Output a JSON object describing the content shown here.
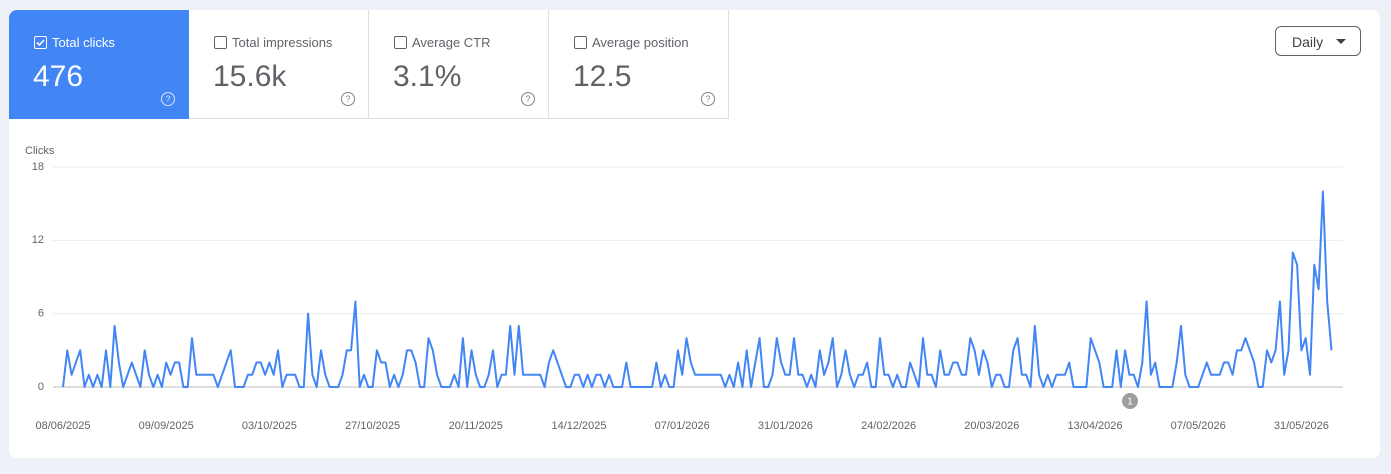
{
  "metrics": [
    {
      "label": "Total clicks",
      "value": "476"
    },
    {
      "label": "Total impressions",
      "value": "15.6k"
    },
    {
      "label": "Average CTR",
      "value": "3.1%"
    },
    {
      "label": "Average position",
      "value": "12.5"
    }
  ],
  "dropdown": "Daily",
  "chart_data": {
    "type": "line",
    "y_label": "Clicks",
    "color": "#4285f4",
    "grid": true,
    "ylim": [
      0,
      18
    ],
    "yticks": [
      0,
      6,
      12,
      18
    ],
    "annotation": "1",
    "categories": [
      "08/06/2025",
      null,
      null,
      null,
      null,
      null,
      null,
      null,
      null,
      null,
      null,
      null,
      null,
      null,
      null,
      null,
      null,
      null,
      null,
      null,
      null,
      null,
      null,
      null,
      "09/09/2025",
      null,
      null,
      null,
      null,
      null,
      null,
      null,
      null,
      null,
      null,
      null,
      null,
      null,
      null,
      null,
      null,
      null,
      null,
      null,
      null,
      null,
      null,
      null,
      "03/10/2025",
      null,
      null,
      null,
      null,
      null,
      null,
      null,
      null,
      null,
      null,
      null,
      null,
      null,
      null,
      null,
      null,
      null,
      null,
      null,
      null,
      null,
      null,
      null,
      "27/10/2025",
      null,
      null,
      null,
      null,
      null,
      null,
      null,
      null,
      null,
      null,
      null,
      null,
      null,
      null,
      null,
      null,
      null,
      null,
      null,
      null,
      null,
      null,
      null,
      "20/11/2025",
      null,
      null,
      null,
      null,
      null,
      null,
      null,
      null,
      null,
      null,
      null,
      null,
      null,
      null,
      null,
      null,
      null,
      null,
      null,
      null,
      null,
      null,
      null,
      "14/12/2025",
      null,
      null,
      null,
      null,
      null,
      null,
      null,
      null,
      null,
      null,
      null,
      null,
      null,
      null,
      null,
      null,
      null,
      null,
      null,
      null,
      null,
      null,
      null,
      "07/01/2026",
      null,
      null,
      null,
      null,
      null,
      null,
      null,
      null,
      null,
      null,
      null,
      null,
      null,
      null,
      null,
      null,
      null,
      null,
      null,
      null,
      null,
      null,
      null,
      "31/01/2026",
      null,
      null,
      null,
      null,
      null,
      null,
      null,
      null,
      null,
      null,
      null,
      null,
      null,
      null,
      null,
      null,
      null,
      null,
      null,
      null,
      null,
      null,
      null,
      "24/02/2026",
      null,
      null,
      null,
      null,
      null,
      null,
      null,
      null,
      null,
      null,
      null,
      null,
      null,
      null,
      null,
      null,
      null,
      null,
      null,
      null,
      null,
      null,
      null,
      "20/03/2026",
      null,
      null,
      null,
      null,
      null,
      null,
      null,
      null,
      null,
      null,
      null,
      null,
      null,
      null,
      null,
      null,
      null,
      null,
      null,
      null,
      null,
      null,
      null,
      "13/04/2026",
      null,
      null,
      null,
      null,
      null,
      null,
      null,
      null,
      null,
      null,
      null,
      null,
      null,
      null,
      null,
      null,
      null,
      null,
      null,
      null,
      null,
      null,
      null,
      "07/05/2026",
      null,
      null,
      null,
      null,
      null,
      null,
      null,
      null,
      null,
      null,
      null,
      null,
      null,
      null,
      null,
      null,
      null,
      null,
      null,
      null,
      null,
      null,
      null,
      "31/05/2026",
      null,
      null,
      null,
      null,
      null,
      null,
      null
    ],
    "values": [
      0,
      3,
      1,
      2,
      3,
      0,
      1,
      0,
      1,
      0,
      3,
      0,
      5,
      2,
      0,
      1,
      2,
      1,
      0,
      3,
      1,
      0,
      1,
      0,
      2,
      1,
      2,
      2,
      0,
      0,
      4,
      1,
      1,
      1,
      1,
      1,
      0,
      1,
      2,
      3,
      0,
      0,
      0,
      1,
      1,
      2,
      2,
      1,
      2,
      1,
      3,
      0,
      1,
      1,
      1,
      0,
      0,
      6,
      1,
      0,
      3,
      1,
      0,
      0,
      0,
      1,
      3,
      3,
      7,
      0,
      1,
      0,
      0,
      3,
      2,
      2,
      0,
      1,
      0,
      1,
      3,
      3,
      2,
      0,
      0,
      4,
      3,
      1,
      0,
      0,
      0,
      1,
      0,
      4,
      0,
      3,
      1,
      0,
      0,
      1,
      3,
      0,
      1,
      1,
      5,
      1,
      5,
      1,
      1,
      1,
      1,
      1,
      0,
      2,
      3,
      2,
      1,
      0,
      0,
      1,
      1,
      0,
      1,
      0,
      1,
      1,
      0,
      1,
      0,
      0,
      0,
      2,
      0,
      0,
      0,
      0,
      0,
      0,
      2,
      0,
      1,
      0,
      0,
      3,
      1,
      4,
      2,
      1,
      1,
      1,
      1,
      1,
      1,
      1,
      0,
      1,
      0,
      2,
      0,
      3,
      0,
      2,
      4,
      0,
      0,
      1,
      4,
      2,
      1,
      1,
      4,
      1,
      1,
      0,
      1,
      0,
      3,
      1,
      2,
      4,
      0,
      1,
      3,
      1,
      0,
      1,
      1,
      2,
      0,
      0,
      4,
      1,
      1,
      0,
      1,
      0,
      0,
      2,
      1,
      0,
      4,
      1,
      1,
      0,
      3,
      1,
      1,
      2,
      2,
      1,
      1,
      4,
      3,
      1,
      3,
      2,
      0,
      1,
      1,
      0,
      0,
      3,
      4,
      1,
      1,
      0,
      5,
      1,
      0,
      1,
      0,
      1,
      1,
      1,
      2,
      0,
      0,
      0,
      0,
      4,
      3,
      2,
      0,
      0,
      0,
      3,
      0,
      3,
      1,
      1,
      0,
      2,
      7,
      1,
      2,
      0,
      0,
      0,
      0,
      2,
      5,
      1,
      0,
      0,
      0,
      1,
      2,
      1,
      1,
      1,
      2,
      2,
      1,
      3,
      3,
      4,
      3,
      2,
      0,
      0,
      3,
      2,
      3,
      7,
      1,
      3,
      11,
      10,
      3,
      4,
      1,
      10,
      8,
      16,
      7,
      3
    ]
  }
}
